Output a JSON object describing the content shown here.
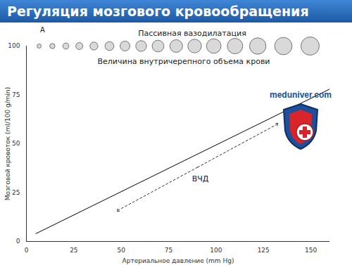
{
  "chart_data": {
    "type": "line",
    "title": "Регуляция мозгового кровообращения",
    "panel_label": "A",
    "x_label": "Артериальное давление (mm Hg)",
    "y_label": "Мозговой кровоток (ml/100 g/min)",
    "x": [
      5,
      160
    ],
    "values": [
      4,
      78
    ],
    "color": "#000000",
    "xlim": [
      0,
      160
    ],
    "xticks": [
      0,
      25,
      50,
      75,
      100,
      125,
      150
    ],
    "ylim": [
      0,
      100
    ],
    "yticks": [
      0,
      25,
      50,
      75,
      100
    ],
    "vasodilation": {
      "label": "Пассивная вазодилатация",
      "sublabel": "Величина внутричерепного объема крови",
      "x": [
        6.7,
        13.7,
        20.8,
        27.9,
        35.6,
        43.8,
        52,
        60.5,
        69.4,
        79,
        88.7,
        98.8,
        110,
        122,
        135.5,
        149.6
      ]
    },
    "icp_arrow": {
      "label": "ВЧД",
      "x1": 47.5,
      "y1": 15.5,
      "x2": 133,
      "y2": 60.4
    },
    "source": "meduniver.com"
  }
}
